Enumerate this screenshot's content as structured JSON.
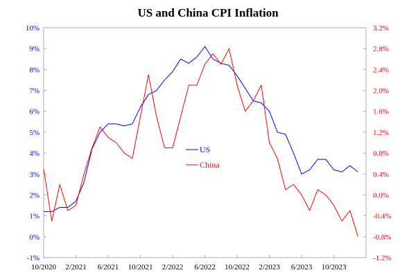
{
  "chart_data": {
    "type": "line",
    "title": "US and China CPI Inflation",
    "x_tick_labels": [
      "10/2020",
      "2/2021",
      "6/2021",
      "10/2021",
      "2/2022",
      "6/2022",
      "10/2022",
      "2/2023",
      "6/2023",
      "10/2023"
    ],
    "x_tick_months": [
      0,
      4,
      8,
      12,
      16,
      20,
      24,
      28,
      32,
      36
    ],
    "x_range_months": [
      0,
      40
    ],
    "y_left": {
      "range": [
        -1,
        10
      ],
      "tick_values": [
        -1,
        0,
        1,
        2,
        3,
        4,
        5,
        6,
        7,
        8,
        9,
        10
      ],
      "tick_labels": [
        "-1%",
        "0%",
        "1%",
        "2%",
        "3%",
        "4%",
        "5%",
        "6%",
        "7%",
        "8%",
        "9%",
        "10%"
      ],
      "color": "#0000ff"
    },
    "y_right": {
      "range": [
        -1.2,
        3.2
      ],
      "tick_values": [
        -1.2,
        -0.8,
        -0.4,
        0.0,
        0.4,
        0.8,
        1.2,
        1.6,
        2.0,
        2.4,
        2.8,
        3.2
      ],
      "tick_labels": [
        "-1.2%",
        "-0.8%",
        "-0.4%",
        "0.0%",
        "0.4%",
        "0.8%",
        "1.2%",
        "1.6%",
        "2.0%",
        "2.4%",
        "2.8%",
        "3.2%"
      ],
      "color": "#ff0000"
    },
    "legend": {
      "placement": "center"
    },
    "grid": false,
    "series": [
      {
        "name": "US",
        "axis": "left",
        "color": "#0000ff",
        "values": [
          1.2,
          1.2,
          1.4,
          1.4,
          1.7,
          2.6,
          4.2,
          5.0,
          5.4,
          5.4,
          5.3,
          5.4,
          6.2,
          6.8,
          7.0,
          7.5,
          7.9,
          8.5,
          8.3,
          8.6,
          9.1,
          8.5,
          8.3,
          8.2,
          7.7,
          7.1,
          6.5,
          6.4,
          6.0,
          5.0,
          4.9,
          4.0,
          3.0,
          3.2,
          3.7,
          3.7,
          3.2,
          3.1,
          3.4,
          3.1
        ]
      },
      {
        "name": "China",
        "axis": "right",
        "color": "#ff0000",
        "values": [
          0.5,
          -0.5,
          0.2,
          -0.3,
          -0.2,
          0.4,
          0.9,
          1.3,
          1.1,
          1.0,
          0.8,
          0.7,
          1.5,
          2.3,
          1.5,
          0.9,
          0.9,
          1.5,
          2.1,
          2.1,
          2.5,
          2.7,
          2.5,
          2.8,
          2.1,
          1.6,
          1.8,
          2.1,
          1.0,
          0.7,
          0.1,
          0.2,
          0.0,
          -0.3,
          0.1,
          0.0,
          -0.2,
          -0.5,
          -0.3,
          -0.8
        ]
      }
    ]
  }
}
